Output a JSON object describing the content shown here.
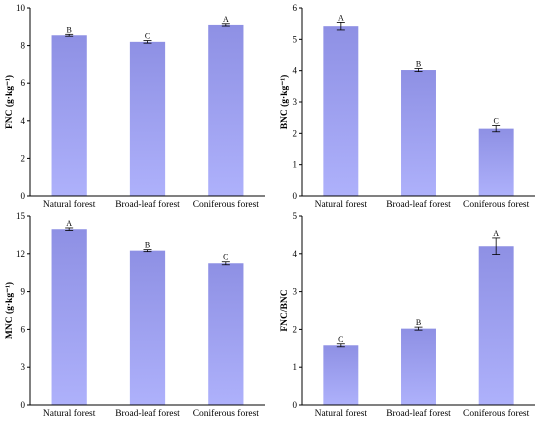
{
  "chart_data": [
    {
      "type": "bar",
      "ylabel": "FNC (g·kg⁻¹)",
      "categories": [
        "Natural forest",
        "Broad-leaf forest",
        "Coniferous forest"
      ],
      "values": [
        8.55,
        8.2,
        9.1
      ],
      "errors": [
        0.05,
        0.07,
        0.06
      ],
      "significance": [
        "B",
        "C",
        "A"
      ],
      "ylim": [
        0,
        10
      ],
      "yticks": [
        "0",
        "2",
        "4",
        "6",
        "8",
        "10"
      ],
      "grid": false,
      "bar_color": "#9c9ff0"
    },
    {
      "type": "bar",
      "ylabel": "BNC (g·kg⁻¹)",
      "categories": [
        "Natural forest",
        "Broad-leaf forest",
        "Coniferous forest"
      ],
      "values": [
        5.42,
        4.02,
        2.15
      ],
      "errors": [
        0.12,
        0.05,
        0.1
      ],
      "significance": [
        "A",
        "B",
        "C"
      ],
      "ylim": [
        0,
        6
      ],
      "yticks": [
        "0",
        "1",
        "2",
        "3",
        "4",
        "5",
        "6"
      ],
      "grid": false,
      "bar_color": "#9c9ff0"
    },
    {
      "type": "bar",
      "ylabel": "MNC (g·kg⁻¹)",
      "categories": [
        "Natural forest",
        "Broad-leaf forest",
        "Coniferous forest"
      ],
      "values": [
        13.95,
        12.25,
        11.25
      ],
      "errors": [
        0.1,
        0.08,
        0.12
      ],
      "significance": [
        "A",
        "B",
        "C"
      ],
      "ylim": [
        0,
        15
      ],
      "yticks": [
        "0",
        "3",
        "6",
        "9",
        "12",
        "15"
      ],
      "grid": false,
      "bar_color": "#9c9ff0"
    },
    {
      "type": "bar",
      "ylabel": "FNC/BNC",
      "categories": [
        "Natural forest",
        "Broad-leaf forest",
        "Coniferous forest"
      ],
      "values": [
        1.58,
        2.02,
        4.2
      ],
      "errors": [
        0.04,
        0.04,
        0.22
      ],
      "significance": [
        "C",
        "B",
        "A"
      ],
      "ylim": [
        0,
        5
      ],
      "yticks": [
        "0",
        "1",
        "2",
        "3",
        "4",
        "5"
      ],
      "grid": false,
      "bar_color": "#9c9ff0"
    }
  ]
}
